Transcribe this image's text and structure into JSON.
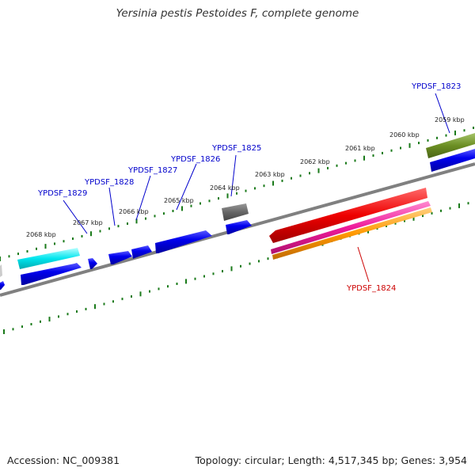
{
  "title": "Yersinia pestis Pestoides F, complete genome",
  "footer": {
    "accession": "Accession: NC_009381",
    "stats": "Topology: circular; Length: 4,517,345 bp; Genes: 3,954"
  },
  "ticks": [
    {
      "label": "2068 kbp",
      "kbp": 2068
    },
    {
      "label": "2067 kbp",
      "kbp": 2067
    },
    {
      "label": "2066 kbp",
      "kbp": 2066
    },
    {
      "label": "2065 kbp",
      "kbp": 2065
    },
    {
      "label": "2064 kbp",
      "kbp": 2064
    },
    {
      "label": "2063 kbp",
      "kbp": 2063
    },
    {
      "label": "2062 kbp",
      "kbp": 2062
    },
    {
      "label": "2061 kbp",
      "kbp": 2061
    },
    {
      "label": "2060 kbp",
      "kbp": 2060
    },
    {
      "label": "2059 kbp",
      "kbp": 2059
    }
  ],
  "gene_labels": [
    {
      "text": "YPDSF_1829",
      "color": "#0000cc"
    },
    {
      "text": "YPDSF_1828",
      "color": "#0000cc"
    },
    {
      "text": "YPDSF_1827",
      "color": "#0000cc"
    },
    {
      "text": "YPDSF_1826",
      "color": "#0000cc"
    },
    {
      "text": "YPDSF_1825",
      "color": "#0000cc"
    },
    {
      "text": "YPDSF_1823",
      "color": "#0000cc"
    },
    {
      "text": "YPDSF_1824",
      "color": "#cc0000"
    }
  ],
  "colors": {
    "gene_blue": "#0000ee",
    "gene_cyan": "#00e5ee",
    "gene_grey": "#666666",
    "gene_red": "#ee0000",
    "gene_magenta": "#ee1a9a",
    "gene_orange": "#ff9900",
    "gene_olive": "#6b8e23",
    "backbone": "#808080",
    "ticks": "#1a7a1a"
  }
}
